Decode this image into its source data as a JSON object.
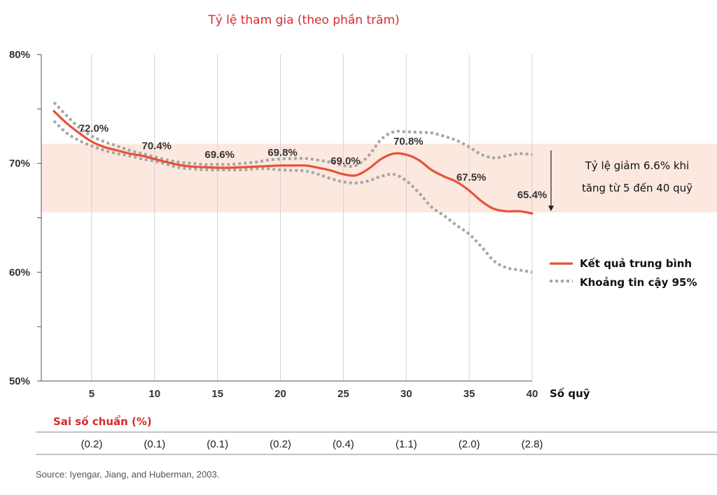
{
  "header": {
    "title": "Tỷ lệ tham gia (theo phần trăm)"
  },
  "chart_data": {
    "type": "line",
    "title": "Tỷ lệ tham gia (theo phần trăm)",
    "xlabel": "Số quỹ",
    "ylabel": "",
    "x_ticks": [
      5,
      10,
      15,
      20,
      25,
      30,
      35,
      40
    ],
    "y_ticks": [
      "50%",
      "60%",
      "70%",
      "80%"
    ],
    "y_tick_values": [
      50,
      60,
      70,
      80
    ],
    "xlim": [
      1,
      40
    ],
    "ylim": [
      50,
      80
    ],
    "grid": "vertical",
    "legend_position": "right",
    "shaded_band": {
      "y_from": 65.5,
      "y_to": 71.8,
      "color": "#fde8df"
    },
    "series": [
      {
        "name": "Kết quả trung bình",
        "color": "#e5533a",
        "style": "solid",
        "x": [
          2,
          3,
          4,
          5,
          6,
          7,
          8,
          9,
          10,
          11,
          12,
          13,
          14,
          15,
          16,
          17,
          18,
          19,
          20,
          21,
          22,
          23,
          24,
          25,
          26,
          27,
          28,
          29,
          30,
          31,
          32,
          33,
          34,
          35,
          36,
          37,
          38,
          39,
          40
        ],
        "y": [
          74.8,
          73.7,
          72.8,
          72.0,
          71.5,
          71.2,
          70.9,
          70.7,
          70.4,
          70.1,
          69.85,
          69.7,
          69.65,
          69.6,
          69.6,
          69.65,
          69.7,
          69.75,
          69.8,
          69.8,
          69.8,
          69.6,
          69.35,
          69.0,
          68.9,
          69.5,
          70.4,
          70.9,
          70.8,
          70.3,
          69.4,
          68.8,
          68.3,
          67.5,
          66.5,
          65.8,
          65.6,
          65.6,
          65.4
        ]
      },
      {
        "name": "Khoảng tin cậy 95%",
        "color": "#a6a6a6",
        "style": "dotted",
        "x": [
          2,
          3,
          4,
          5,
          6,
          7,
          8,
          9,
          10,
          11,
          12,
          13,
          14,
          15,
          16,
          17,
          18,
          19,
          20,
          21,
          22,
          23,
          24,
          25,
          26,
          27,
          28,
          29,
          30,
          31,
          32,
          33,
          34,
          35,
          36,
          37,
          38,
          39,
          40
        ],
        "y": [
          75.6,
          74.4,
          73.3,
          72.5,
          72.0,
          71.6,
          71.2,
          70.9,
          70.6,
          70.3,
          70.1,
          70.0,
          69.9,
          69.9,
          69.9,
          70.0,
          70.1,
          70.3,
          70.4,
          70.45,
          70.45,
          70.3,
          70.1,
          69.8,
          69.8,
          70.7,
          72.2,
          72.9,
          72.9,
          72.85,
          72.8,
          72.5,
          72.1,
          71.5,
          70.8,
          70.5,
          70.7,
          70.9,
          70.8
        ]
      },
      {
        "name": "",
        "color": "#a6a6a6",
        "style": "dotted",
        "x": [
          2,
          3,
          4,
          5,
          6,
          7,
          8,
          9,
          10,
          11,
          12,
          13,
          14,
          15,
          16,
          17,
          18,
          19,
          20,
          21,
          22,
          23,
          24,
          25,
          26,
          27,
          28,
          29,
          30,
          31,
          32,
          33,
          34,
          35,
          36,
          37,
          38,
          39,
          40
        ],
        "y": [
          73.9,
          72.8,
          72.1,
          71.6,
          71.2,
          70.9,
          70.7,
          70.4,
          70.2,
          69.9,
          69.6,
          69.5,
          69.4,
          69.4,
          69.4,
          69.4,
          69.5,
          69.5,
          69.4,
          69.35,
          69.3,
          69.0,
          68.6,
          68.3,
          68.2,
          68.4,
          68.8,
          69.0,
          68.4,
          67.3,
          66.0,
          65.2,
          64.3,
          63.5,
          62.3,
          61.0,
          60.4,
          60.2,
          60.0
        ]
      }
    ],
    "data_labels": [
      {
        "x": 5,
        "y": 72.0,
        "text": "72.0%"
      },
      {
        "x": 10,
        "y": 70.4,
        "text": "70.4%"
      },
      {
        "x": 15,
        "y": 69.6,
        "text": "69.6%"
      },
      {
        "x": 20,
        "y": 69.8,
        "text": "69.8%"
      },
      {
        "x": 25,
        "y": 69.0,
        "text": "69.0%"
      },
      {
        "x": 30,
        "y": 70.8,
        "text": "70.8%"
      },
      {
        "x": 35,
        "y": 67.5,
        "text": "67.5%"
      },
      {
        "x": 40,
        "y": 65.4,
        "text": "65.4%"
      }
    ],
    "annotation": {
      "lines": [
        "Tỷ lệ giảm 6.6% khi",
        "tăng từ 5 đến 40 quỹ"
      ],
      "arrow_from_y": 71.2,
      "arrow_to_y": 65.6,
      "arrow_x": 41.5
    },
    "standard_error": {
      "title": "Sai số chuẩn (%)",
      "x": [
        5,
        10,
        15,
        20,
        25,
        30,
        35,
        40
      ],
      "values": [
        "(0.2)",
        "(0.1)",
        "(0.1)",
        "(0.2)",
        "(0.4)",
        "(1.1)",
        "(2.0)",
        "(2.8)"
      ]
    },
    "source": "Source: Iyengar, Jiang, and Huberman, 2003."
  }
}
